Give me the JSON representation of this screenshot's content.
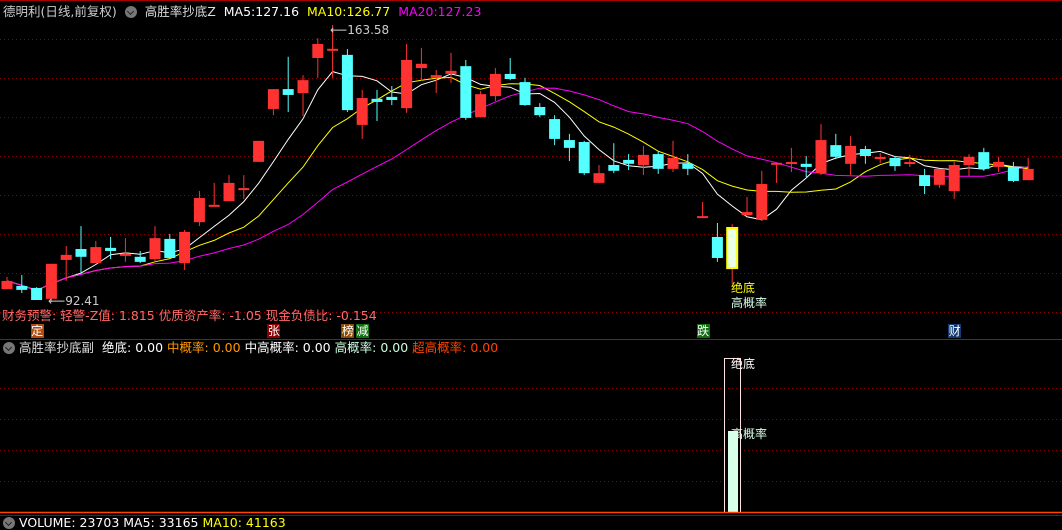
{
  "header": {
    "stock": "德明利(日线,前复权)",
    "indicator": "高胜率抄底Z",
    "ma5_label": "MA5:",
    "ma5": "127.16",
    "ma10_label": "MA10:",
    "ma10": "126.77",
    "ma20_label": "MA20:",
    "ma20": "127.23"
  },
  "colors": {
    "up": "#ff3232",
    "down": "#54ffff",
    "ma5": "#ffffff",
    "ma10": "#ffff00",
    "ma20": "#ff00ff",
    "grid": "#8b0000"
  },
  "chart_data": {
    "type": "candlestick",
    "max_label": "163.58",
    "min_label": "92.41",
    "candles": [
      [
        95.7,
        97.8,
        98.8,
        95.7
      ],
      [
        96.5,
        95.5,
        99.3,
        94.7
      ],
      [
        96.0,
        92.9,
        96.2,
        92.9
      ],
      [
        93.2,
        102.2,
        102.2,
        92.41
      ],
      [
        103.2,
        104.5,
        106.8,
        97.8
      ],
      [
        106.0,
        104.0,
        111.9,
        99.8
      ],
      [
        102.4,
        106.5,
        108.1,
        102.4
      ],
      [
        106.3,
        105.5,
        109.1,
        103.4
      ],
      [
        104.5,
        104.5,
        108.8,
        102.7
      ],
      [
        104.0,
        102.7,
        105.5,
        102.4
      ],
      [
        103.4,
        108.8,
        111.9,
        102.7
      ],
      [
        108.6,
        103.7,
        109.9,
        103.7
      ],
      [
        102.4,
        110.4,
        110.9,
        100.6
      ],
      [
        112.9,
        119.1,
        120.9,
        111.9
      ],
      [
        117.1,
        117.1,
        123.0,
        117.1
      ],
      [
        118.3,
        123.0,
        125.0,
        118.3
      ],
      [
        121.4,
        121.4,
        125.0,
        118.9
      ],
      [
        128.4,
        133.8,
        133.8,
        128.4
      ],
      [
        142.0,
        147.1,
        147.1,
        140.4
      ],
      [
        147.1,
        145.6,
        155.4,
        141.2
      ],
      [
        146.1,
        149.4,
        150.7,
        140.2
      ],
      [
        155.1,
        158.7,
        160.2,
        150.0
      ],
      [
        157.2,
        157.2,
        163.58,
        150.0
      ],
      [
        155.9,
        141.7,
        157.4,
        141.2
      ],
      [
        137.9,
        144.8,
        146.9,
        134.3
      ],
      [
        144.6,
        143.8,
        146.9,
        138.9
      ],
      [
        145.1,
        144.3,
        147.9,
        143.0
      ],
      [
        142.2,
        154.6,
        158.7,
        141.0
      ],
      [
        152.5,
        153.6,
        157.7,
        149.2
      ],
      [
        150.0,
        150.7,
        152.0,
        146.1
      ],
      [
        151.0,
        151.8,
        156.4,
        148.7
      ],
      [
        153.0,
        139.7,
        154.6,
        139.2
      ],
      [
        139.9,
        145.8,
        146.6,
        139.9
      ],
      [
        145.3,
        151.0,
        152.5,
        144.0
      ],
      [
        151.0,
        149.7,
        155.1,
        149.4
      ],
      [
        148.9,
        143.0,
        150.0,
        142.8
      ],
      [
        142.5,
        140.4,
        143.5,
        139.9
      ],
      [
        139.4,
        134.3,
        140.4,
        132.7
      ],
      [
        134.0,
        132.0,
        135.6,
        128.6
      ],
      [
        133.5,
        125.5,
        133.8,
        125.0
      ],
      [
        123.0,
        125.5,
        127.6,
        123.0
      ],
      [
        127.6,
        126.1,
        133.2,
        125.5
      ],
      [
        128.9,
        127.9,
        130.4,
        126.3
      ],
      [
        127.6,
        130.2,
        132.5,
        125.0
      ],
      [
        130.4,
        126.6,
        131.2,
        125.3
      ],
      [
        126.6,
        129.4,
        133.8,
        125.8
      ],
      [
        127.9,
        126.6,
        130.4,
        125.0
      ],
      [
        114.2,
        114.2,
        118.1,
        114.2
      ],
      [
        109.1,
        103.7,
        112.7,
        102.7
      ],
      [
        101.1,
        111.4,
        112.4,
        97.0
      ],
      [
        114.7,
        115.5,
        119.4,
        114.7
      ],
      [
        113.5,
        122.7,
        126.1,
        113.2
      ],
      [
        127.9,
        127.9,
        128.1,
        123.0
      ],
      [
        128.1,
        128.1,
        132.0,
        125.8
      ],
      [
        127.9,
        127.1,
        129.9,
        124.5
      ],
      [
        125.5,
        134.0,
        138.1,
        125.0
      ],
      [
        132.7,
        129.7,
        135.6,
        129.1
      ],
      [
        127.9,
        132.5,
        135.0,
        125.0
      ],
      [
        131.7,
        129.9,
        132.5,
        127.9
      ],
      [
        129.4,
        129.4,
        130.7,
        128.1
      ],
      [
        129.4,
        127.3,
        129.9,
        126.1
      ],
      [
        128.1,
        128.1,
        130.2,
        127.1
      ],
      [
        125.0,
        122.2,
        126.6,
        120.1
      ],
      [
        122.5,
        126.6,
        126.6,
        121.7
      ],
      [
        120.9,
        127.6,
        128.4,
        118.9
      ],
      [
        127.6,
        129.7,
        130.4,
        124.8
      ],
      [
        130.9,
        126.6,
        132.0,
        126.1
      ],
      [
        127.1,
        128.4,
        129.7,
        125.8
      ],
      [
        127.1,
        123.5,
        128.4,
        123.2
      ],
      [
        123.7,
        126.6,
        129.4,
        123.7
      ]
    ],
    "signal_index": 49,
    "signal_labels": [
      "绝底",
      "高概率"
    ]
  },
  "warning": "财务预警: 轻警-Z值: 1.815 优质资产率: -1.05 现金负债比: -0.154",
  "event_marks": [
    {
      "text": "定",
      "bg": "#b04a10",
      "index": 2
    },
    {
      "text": "张",
      "bg": "#8b0000",
      "index": 18
    },
    {
      "text": "榜",
      "bg": "#8b4a00",
      "index": 23
    },
    {
      "text": "减",
      "bg": "#107010",
      "index": 24
    },
    {
      "text": "跌",
      "bg": "#107010",
      "index": 47
    },
    {
      "text": "财",
      "bg": "#103a70",
      "index": 64
    }
  ],
  "sub": {
    "name": "高胜率抄底副",
    "items": [
      {
        "label": "绝底:",
        "value": "0.00",
        "color": "#ffffff"
      },
      {
        "label": "中概率:",
        "value": "0.00",
        "color": "#ff9900"
      },
      {
        "label": "中高概率:",
        "value": "0.00",
        "color": "#ffffff"
      },
      {
        "label": "高概率:",
        "value": "0.00",
        "color": "#ccffe0"
      },
      {
        "label": "超高概率:",
        "value": "0.00",
        "color": "#ff4400"
      }
    ],
    "bar_outline_label": "绝底",
    "bar_fill_label": "高概率",
    "bar_outline_value": 1.0,
    "bar_fill_value": 0.53
  },
  "volume": {
    "text": "VOLUME: 23703 MA5: 33165",
    "ma10": "MA10: 41163"
  }
}
